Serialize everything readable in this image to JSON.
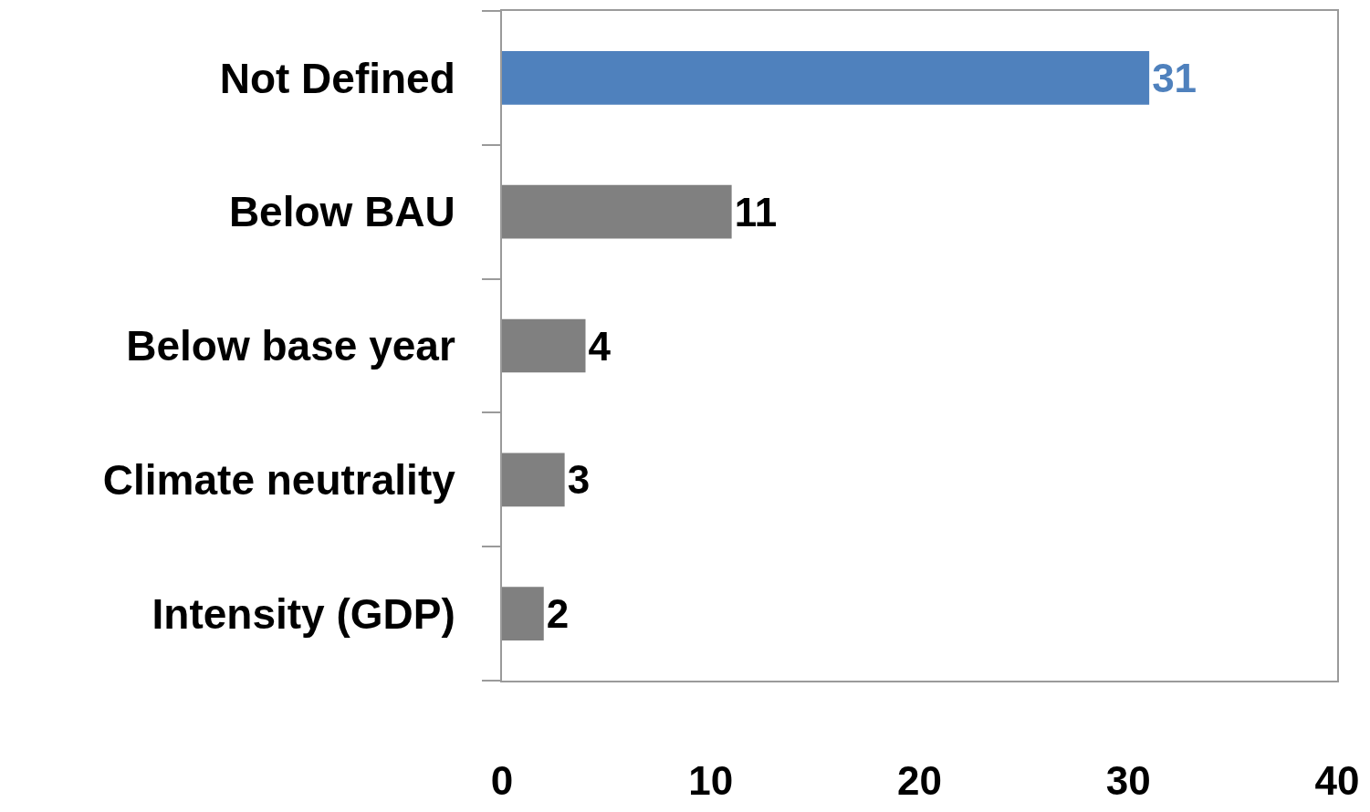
{
  "chart_data": {
    "type": "bar",
    "orientation": "horizontal",
    "categories": [
      "Not Defined",
      "Below BAU",
      "Below base year",
      "Climate neutrality",
      "Intensity (GDP)"
    ],
    "values": [
      31,
      11,
      4,
      3,
      2
    ],
    "colors": [
      "#4f81bd",
      "#808080",
      "#808080",
      "#808080",
      "#808080"
    ],
    "xlim": [
      0,
      40
    ],
    "xticks": [
      0,
      10,
      20,
      30,
      40
    ],
    "data_labels": true
  }
}
